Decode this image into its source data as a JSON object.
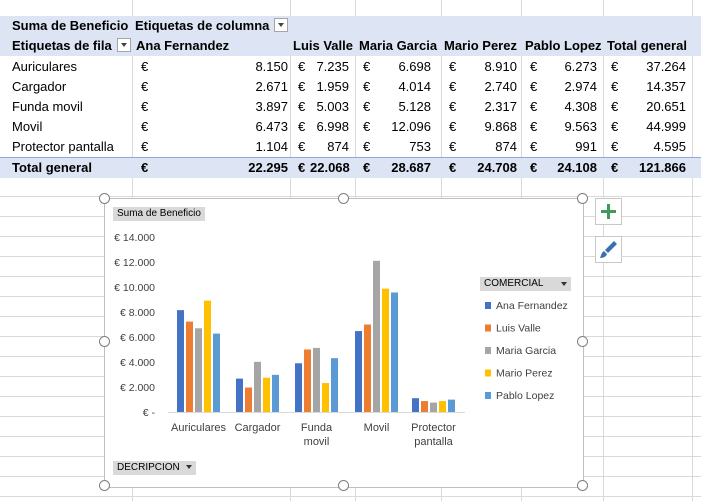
{
  "pivot": {
    "corner_label": "Suma de Beneficio",
    "column_labels_caption": "Etiquetas de columna",
    "row_labels_caption": "Etiquetas de fila",
    "currency": "€",
    "columns": [
      "Ana Fernandez",
      "Luis Valle",
      "Maria Garcia",
      "Mario Perez",
      "Pablo Lopez",
      "Total general"
    ],
    "rows": [
      {
        "label": "Auriculares",
        "values": [
          "8.150",
          "7.235",
          "6.698",
          "8.910",
          "6.273",
          "37.264"
        ]
      },
      {
        "label": "Cargador",
        "values": [
          "2.671",
          "1.959",
          "4.014",
          "2.740",
          "2.974",
          "14.357"
        ]
      },
      {
        "label": "Funda movil",
        "values": [
          "3.897",
          "5.003",
          "5.128",
          "2.317",
          "4.308",
          "20.651"
        ]
      },
      {
        "label": "Movil",
        "values": [
          "6.473",
          "6.998",
          "12.096",
          "9.868",
          "9.563",
          "44.999"
        ]
      },
      {
        "label": "Protector pantalla",
        "values": [
          "1.104",
          "874",
          "753",
          "874",
          "991",
          "4.595"
        ]
      }
    ],
    "total": {
      "label": "Total general",
      "values": [
        "22.295",
        "22.068",
        "28.687",
        "24.708",
        "24.108",
        "121.866"
      ]
    }
  },
  "chart": {
    "value_field_button": "Suma de Beneficio",
    "legend_field_button": "COMERCIAL",
    "axis_field_button": "DECRIPCION",
    "add_element_icon": "plus-icon",
    "style_icon": "paintbrush-icon"
  },
  "chart_data": {
    "type": "bar",
    "categories": [
      "Auriculares",
      "Cargador",
      "Funda movil",
      "Movil",
      "Protector pantalla"
    ],
    "series": [
      {
        "name": "Ana Fernandez",
        "color": "#4472c4",
        "values": [
          8150,
          2671,
          3897,
          6473,
          1104
        ]
      },
      {
        "name": "Luis Valle",
        "color": "#ed7d31",
        "values": [
          7235,
          1959,
          5003,
          6998,
          874
        ]
      },
      {
        "name": "Maria Garcia",
        "color": "#a5a5a5",
        "values": [
          6698,
          4014,
          5128,
          12096,
          753
        ]
      },
      {
        "name": "Mario Perez",
        "color": "#ffc000",
        "values": [
          8910,
          2740,
          2317,
          9868,
          874
        ]
      },
      {
        "name": "Pablo Lopez",
        "color": "#5b9bd5",
        "values": [
          6273,
          2974,
          4308,
          9563,
          991
        ]
      }
    ],
    "yticks": [
      "€ -",
      "€ 2.000",
      "€ 4.000",
      "€ 6.000",
      "€ 8.000",
      "€ 10.000",
      "€ 12.000",
      "€ 14.000"
    ],
    "ylim": [
      0,
      14000
    ],
    "legend_position": "right",
    "grid": false
  }
}
